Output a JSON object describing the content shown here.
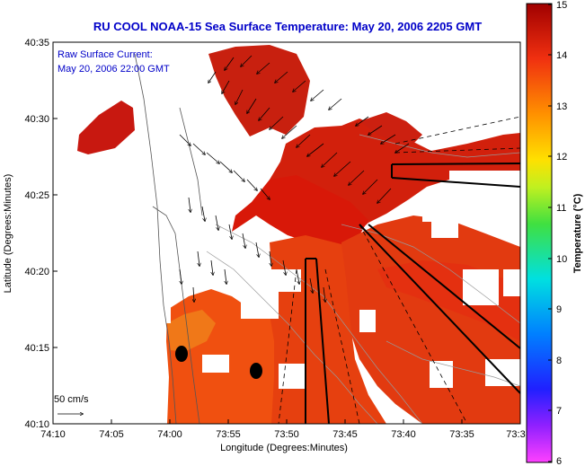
{
  "title": "RU COOL  NOAA-15  Sea Surface Temperature:  May 20, 2006 2205 GMT",
  "current_label": "Raw Surface Current:",
  "current_time": "May 20, 2006 22:00 GMT",
  "scale_label": "50 cm/s",
  "x_axis_title": "Longitude (Degrees:Minutes)",
  "y_axis_title": "Latitude (Degrees:Minutes)",
  "colorbar_title": "Temperature (°C)",
  "x_ticks": [
    "74:10",
    "74:05",
    "74:00",
    "73:55",
    "73:50",
    "73:45",
    "73:40",
    "73:35",
    "73:3"
  ],
  "y_ticks": [
    "40:35",
    "40:30",
    "40:25",
    "40:20",
    "40:15",
    "40:10"
  ],
  "colorbar_ticks": [
    "15",
    "14",
    "13",
    "12",
    "11",
    "10",
    "9",
    "8",
    "7",
    "6"
  ],
  "colors": {
    "title": "#0000c8",
    "sst_warm": "#d81a0c",
    "sst_cool": "#f06a10",
    "land": "#ffffff"
  }
}
